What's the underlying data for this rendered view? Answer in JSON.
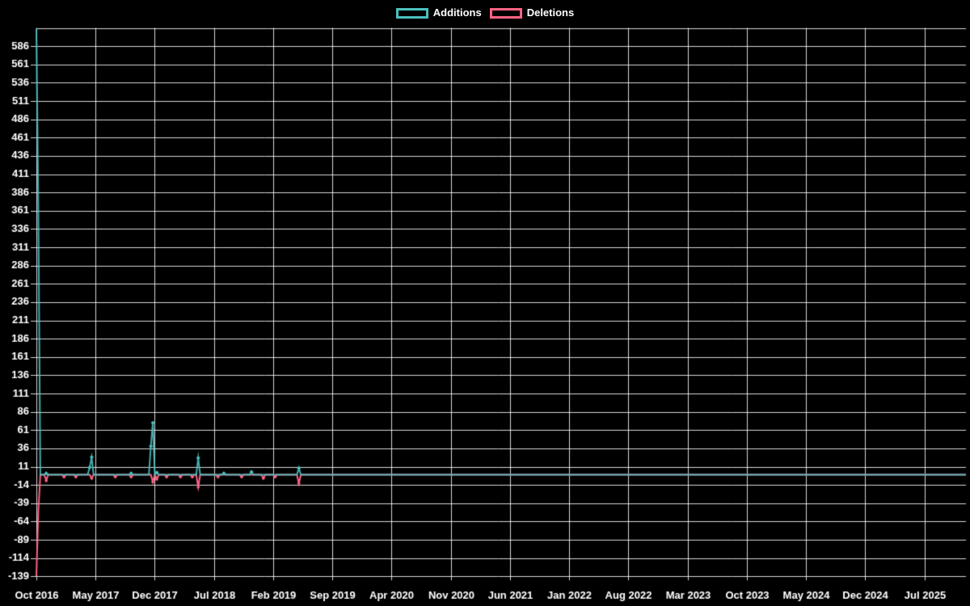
{
  "page": {
    "background": "#000000",
    "text_color": "#ffffff",
    "grid_color": "#ffffff"
  },
  "legend": {
    "position": "top",
    "items": [
      {
        "label": "Additions",
        "color": "#4bc0c0"
      },
      {
        "label": "Deletions",
        "color": "#ff6384"
      }
    ]
  },
  "chart_data": {
    "type": "line",
    "title": "",
    "xlabel": "",
    "ylabel": "",
    "background": "#000000",
    "grid": true,
    "grid_color": "#ffffff",
    "axis_text_color": "#ffffff",
    "legend_position": "top",
    "x_unit": "week",
    "n_points": 472,
    "x_tick_every": 30,
    "x_tick_labels": [
      "Oct 2016",
      "May 2017",
      "Dec 2017",
      "Jul 2018",
      "Feb 2019",
      "Sep 2019",
      "Apr 2020",
      "Nov 2020",
      "Jun 2021",
      "Jan 2022",
      "Aug 2022",
      "Mar 2023",
      "Oct 2023",
      "May 2024",
      "Dec 2024",
      "Jul 2025"
    ],
    "y_ticks": [
      -139,
      -114,
      -89,
      -64,
      -39,
      -14,
      11,
      36,
      61,
      86,
      111,
      136,
      161,
      186,
      211,
      236,
      261,
      286,
      311,
      336,
      361,
      386,
      411,
      436,
      461,
      486,
      511,
      536,
      561,
      586
    ],
    "y_top_gridline_value": 611,
    "ylim": [
      -139,
      611
    ],
    "series": [
      {
        "name": "Additions",
        "color": "#4bc0c0",
        "default_value": 0,
        "points": [
          [
            0,
            610
          ],
          [
            1,
            360
          ],
          [
            5,
            2
          ],
          [
            27,
            10
          ],
          [
            28,
            24
          ],
          [
            48,
            2
          ],
          [
            58,
            39
          ],
          [
            59,
            71
          ],
          [
            61,
            3
          ],
          [
            82,
            23
          ],
          [
            95,
            2
          ],
          [
            109,
            4
          ],
          [
            133,
            9
          ]
        ]
      },
      {
        "name": "Deletions",
        "color": "#ff6384",
        "default_value": 0,
        "points": [
          [
            0,
            -139
          ],
          [
            1,
            -50
          ],
          [
            5,
            -8
          ],
          [
            14,
            -3
          ],
          [
            20,
            -3
          ],
          [
            28,
            -5
          ],
          [
            40,
            -3
          ],
          [
            48,
            -3
          ],
          [
            59,
            -10
          ],
          [
            61,
            -6
          ],
          [
            66,
            -3
          ],
          [
            73,
            -3
          ],
          [
            79,
            -3
          ],
          [
            82,
            -17
          ],
          [
            92,
            -3
          ],
          [
            104,
            -3
          ],
          [
            115,
            -5
          ],
          [
            121,
            -3
          ],
          [
            133,
            -12
          ]
        ]
      }
    ]
  }
}
